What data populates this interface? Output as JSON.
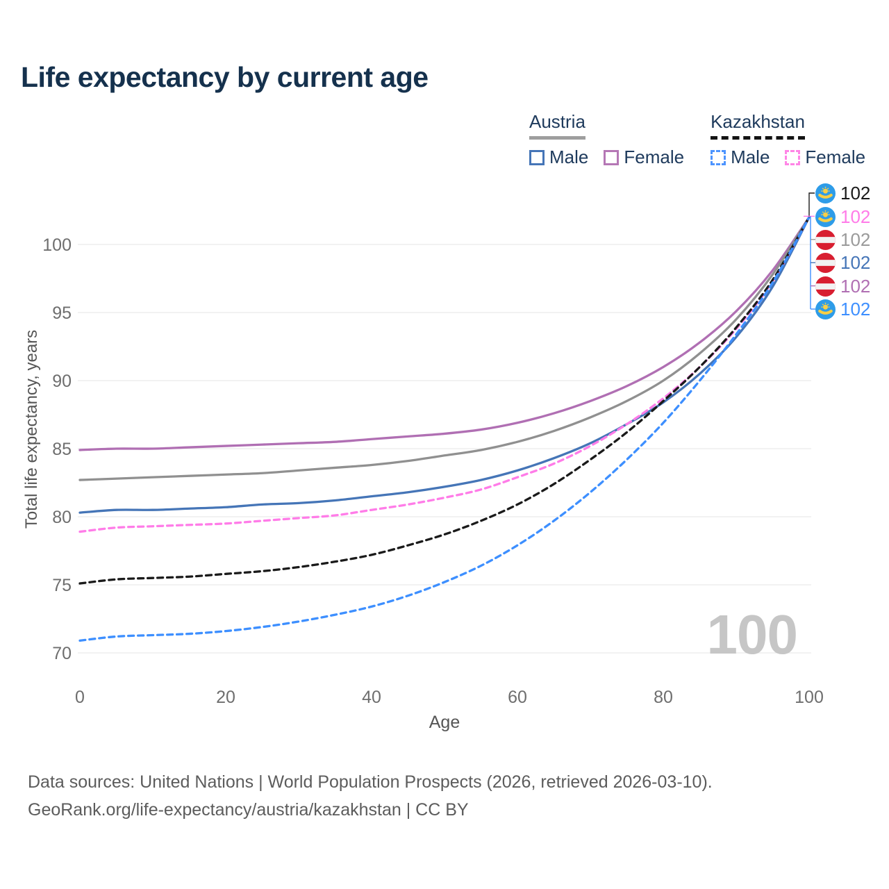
{
  "title": "Life expectancy by current age",
  "watermark_age": "100",
  "legend": {
    "groups": [
      {
        "country": "Austria",
        "line_style": "solid",
        "rule_color": "#9e9e9e",
        "items": [
          {
            "label": "Male",
            "color": "#4575b7"
          },
          {
            "label": "Female",
            "color": "#b577b5"
          }
        ]
      },
      {
        "country": "Kazakhstan",
        "line_style": "dashed",
        "rule_color": "#141414",
        "items": [
          {
            "label": "Male",
            "color": "#4d94ff"
          },
          {
            "label": "Female",
            "color": "#ff85e6"
          }
        ]
      }
    ]
  },
  "chart_data": {
    "type": "line",
    "title": "Life expectancy by current age",
    "xlabel": "Age",
    "ylabel": "Total life expectancy, years",
    "xticks": [
      0,
      20,
      40,
      60,
      80,
      100
    ],
    "yticks": [
      70,
      75,
      80,
      85,
      90,
      95,
      100
    ],
    "xlim": [
      0,
      100
    ],
    "ylim": [
      68.5,
      103
    ],
    "grid": "horizontal",
    "legend_position": "top-right",
    "hovered_age": 100,
    "x": [
      0,
      5,
      10,
      15,
      20,
      25,
      30,
      35,
      40,
      45,
      50,
      55,
      60,
      65,
      70,
      75,
      80,
      85,
      90,
      95,
      100
    ],
    "series": [
      {
        "name": "Austria Female",
        "country": "Austria",
        "color": "#b06fb3",
        "dash": false,
        "values": [
          84.9,
          85.0,
          85.0,
          85.1,
          85.2,
          85.3,
          85.4,
          85.5,
          85.7,
          85.9,
          86.1,
          86.4,
          86.9,
          87.6,
          88.5,
          89.6,
          91.0,
          92.8,
          95.1,
          98.1,
          102
        ]
      },
      {
        "name": "Austria (both sexes)",
        "country": "Austria",
        "color": "#909090",
        "dash": false,
        "values": [
          82.7,
          82.8,
          82.9,
          83.0,
          83.1,
          83.2,
          83.4,
          83.6,
          83.8,
          84.1,
          84.5,
          84.9,
          85.5,
          86.3,
          87.3,
          88.5,
          90.0,
          92.0,
          94.5,
          97.8,
          102
        ]
      },
      {
        "name": "Austria Male",
        "country": "Austria",
        "color": "#4575b7",
        "dash": false,
        "values": [
          80.3,
          80.5,
          80.5,
          80.6,
          80.7,
          80.9,
          81.0,
          81.2,
          81.5,
          81.8,
          82.2,
          82.7,
          83.4,
          84.3,
          85.4,
          86.8,
          88.4,
          90.5,
          93.2,
          96.9,
          102
        ]
      },
      {
        "name": "Kazakhstan Female",
        "country": "Kazakhstan",
        "color": "#ff7ce8",
        "dash": true,
        "values": [
          78.9,
          79.2,
          79.3,
          79.4,
          79.5,
          79.7,
          79.9,
          80.1,
          80.5,
          80.9,
          81.4,
          82.0,
          82.9,
          83.9,
          85.2,
          86.8,
          88.7,
          91.0,
          93.8,
          97.3,
          102
        ]
      },
      {
        "name": "Kazakhstan (both sexes)",
        "country": "Kazakhstan",
        "color": "#1a1a1a",
        "dash": true,
        "values": [
          75.1,
          75.4,
          75.5,
          75.6,
          75.8,
          76.0,
          76.3,
          76.7,
          77.2,
          77.9,
          78.7,
          79.7,
          80.9,
          82.4,
          84.2,
          86.2,
          88.5,
          91.0,
          93.9,
          97.4,
          102
        ]
      },
      {
        "name": "Kazakhstan Male",
        "country": "Kazakhstan",
        "color": "#3d8fff",
        "dash": true,
        "values": [
          70.9,
          71.2,
          71.3,
          71.4,
          71.6,
          71.9,
          72.3,
          72.8,
          73.4,
          74.2,
          75.2,
          76.4,
          77.9,
          79.7,
          81.8,
          84.2,
          86.9,
          90.0,
          93.4,
          97.2,
          102
        ]
      }
    ]
  },
  "endpoint_labels": [
    {
      "country": "kazakhstan",
      "value": "102",
      "color": "#1a1a1a"
    },
    {
      "country": "kazakhstan",
      "value": "102",
      "color": "#ff7ce8"
    },
    {
      "country": "austria",
      "value": "102",
      "color": "#9a9a9a"
    },
    {
      "country": "austria",
      "value": "102",
      "color": "#4575b7"
    },
    {
      "country": "austria",
      "value": "102",
      "color": "#b06fb3"
    },
    {
      "country": "kazakhstan",
      "value": "102",
      "color": "#3d8fff"
    }
  ],
  "flag_colors": {
    "kazakhstan_blue": "#2e9ce8",
    "kazakhstan_gold": "#f7cf46",
    "austria_red": "#d81e30",
    "austria_white": "#f2f2f2"
  },
  "axis_colors": {
    "tick_text": "#6e6e6e",
    "gridline": "#eaeaea"
  },
  "footer": {
    "line1": "Data sources: United Nations | World Population Prospects (2026, retrieved 2026-03-10).",
    "line2": "GeoRank.org/life-expectancy/austria/kazakhstan | CC BY"
  }
}
